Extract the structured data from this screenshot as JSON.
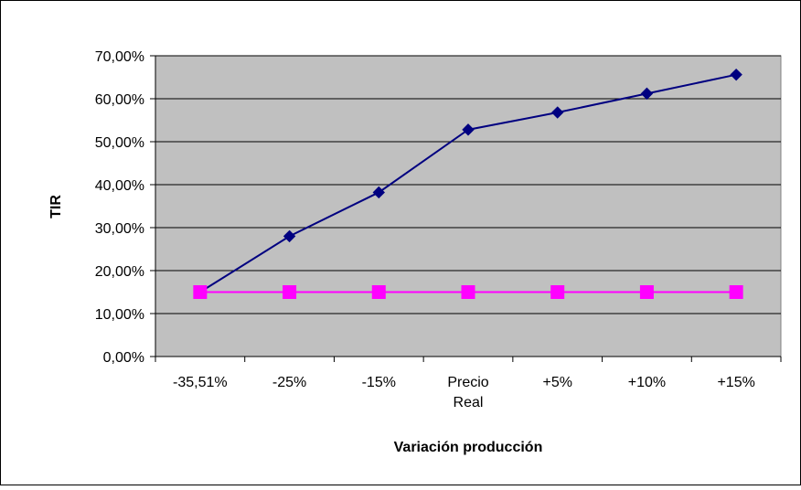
{
  "chart_data": {
    "type": "line",
    "title": "",
    "xlabel": "Variación producción",
    "ylabel": "TIR",
    "categories": [
      "-35,51%",
      "-25%",
      "-15%",
      "Precio Real",
      "+5%",
      "+10%",
      "+15%"
    ],
    "y_ticks": [
      "0,00%",
      "10,00%",
      "20,00%",
      "30,00%",
      "40,00%",
      "50,00%",
      "60,00%",
      "70,00%"
    ],
    "ylim": [
      0,
      70
    ],
    "grid": true,
    "legend": "none",
    "series": [
      {
        "values": [
          15.0,
          28.0,
          38.2,
          52.8,
          56.8,
          61.2,
          65.6
        ],
        "color": "#000080",
        "marker": "diamond"
      },
      {
        "values": [
          15.0,
          15.0,
          15.0,
          15.0,
          15.0,
          15.0,
          15.0
        ],
        "color": "#FF00FF",
        "marker": "square"
      }
    ],
    "plot_background": "#C0C0C0"
  }
}
